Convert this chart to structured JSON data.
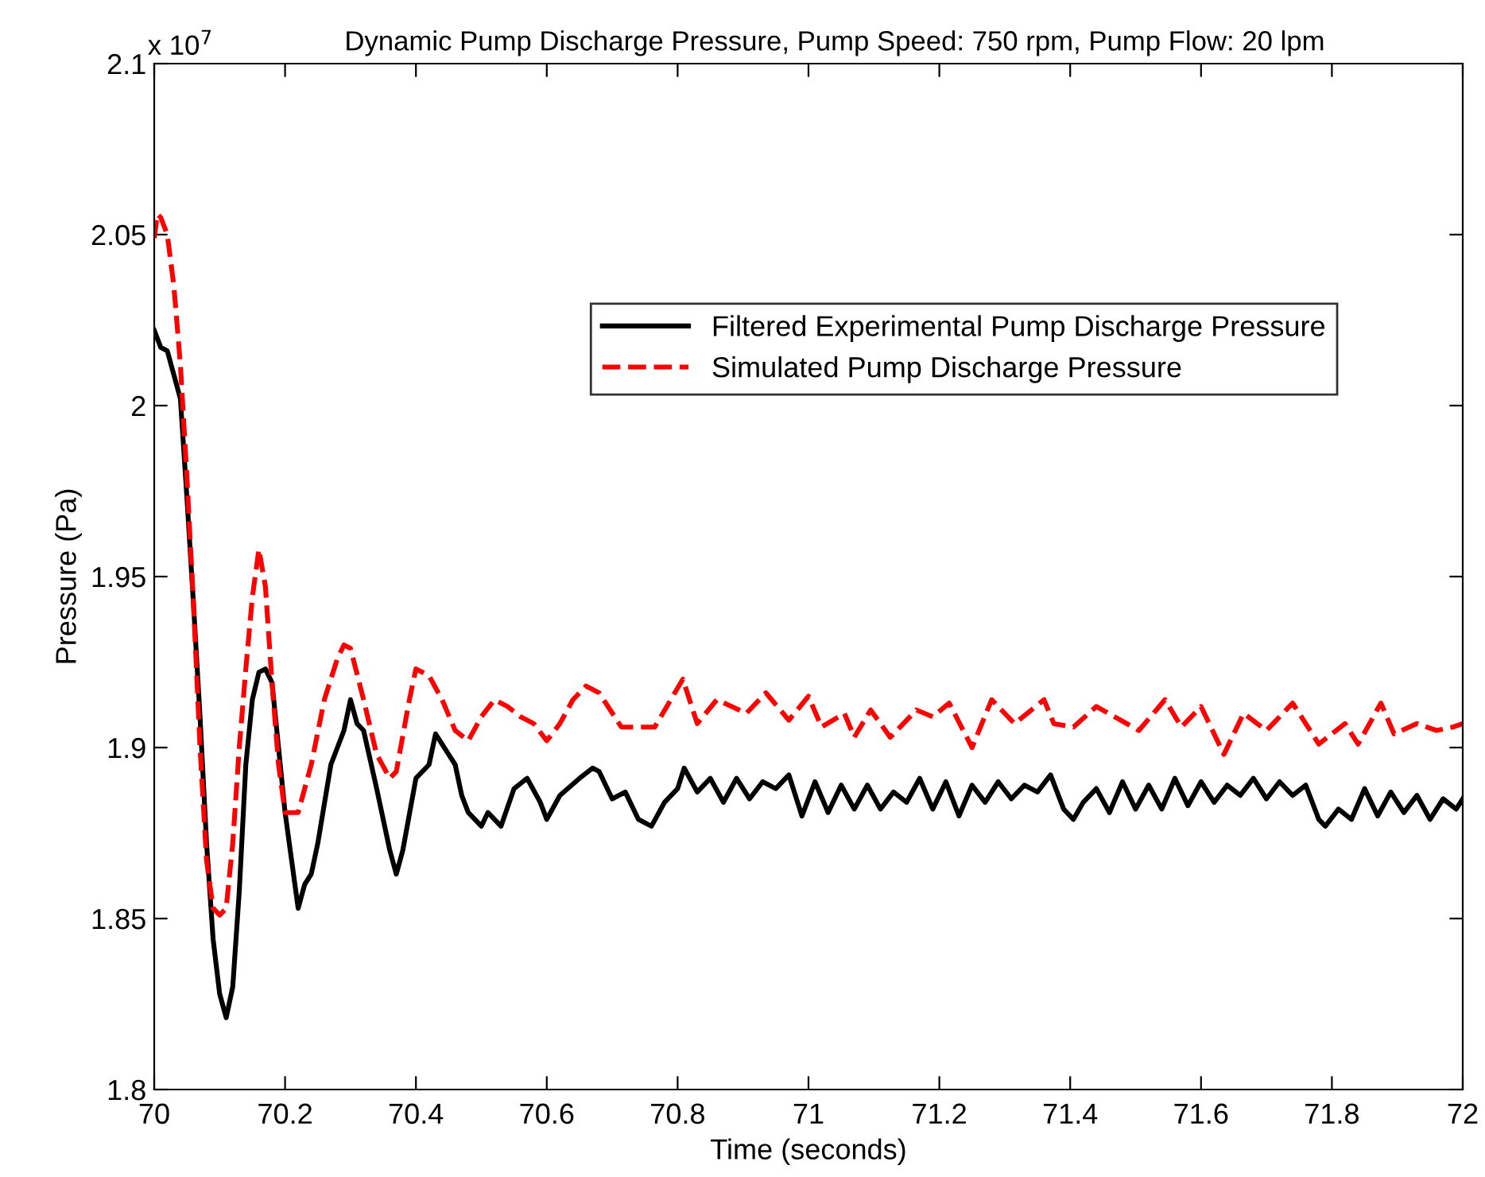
{
  "chart_data": {
    "type": "line",
    "title": "Dynamic Pump Discharge Pressure, Pump Speed: 750 rpm, Pump Flow: 20 lpm",
    "xlabel": "Time (seconds)",
    "ylabel": "Pressure (Pa)",
    "annotations": [
      "x 10$^{7}$"
    ],
    "xlim": [
      70,
      72
    ],
    "ylim": [
      1.8,
      2.1
    ],
    "xticks": [
      70,
      70.2,
      70.4,
      70.6,
      70.8,
      71,
      71.2,
      71.4,
      71.6,
      71.8,
      72
    ],
    "yticks": [
      1.8,
      1.85,
      1.9,
      1.95,
      2,
      2.05,
      2.1
    ],
    "grid": false,
    "legend": "upper right",
    "series": [
      {
        "name": "Filtered Experimental Pump Discharge Pressure",
        "color": "#000000",
        "line_style": "solid",
        "x": [
          70,
          70.01,
          70.02,
          70.03,
          70.04,
          70.05,
          70.06,
          70.07,
          70.08,
          70.09,
          70.1,
          70.11,
          70.12,
          70.13,
          70.14,
          70.15,
          70.16,
          70.17,
          70.18,
          70.19,
          70.2,
          70.22,
          70.23,
          70.24,
          70.25,
          70.27,
          70.29,
          70.3,
          70.31,
          70.32,
          70.34,
          70.36,
          70.37,
          70.38,
          70.4,
          70.42,
          70.43,
          70.45,
          70.46,
          70.47,
          70.48,
          70.5,
          70.51,
          70.53,
          70.55,
          70.57,
          70.59,
          70.6,
          70.62,
          70.65,
          70.67,
          70.68,
          70.7,
          70.72,
          70.74,
          70.76,
          70.78,
          70.8,
          70.81,
          70.83,
          70.85,
          70.87,
          70.89,
          70.91,
          70.93,
          70.95,
          70.97,
          70.99,
          71.01,
          71.03,
          71.05,
          71.07,
          71.09,
          71.11,
          71.13,
          71.15,
          71.17,
          71.19,
          71.21,
          71.23,
          71.25,
          71.27,
          71.29,
          71.31,
          71.33,
          71.35,
          71.37,
          71.39,
          71.405,
          71.42,
          71.44,
          71.46,
          71.48,
          71.5,
          71.52,
          71.54,
          71.56,
          71.58,
          71.6,
          71.62,
          71.64,
          71.66,
          71.68,
          71.7,
          71.72,
          71.74,
          71.76,
          71.78,
          71.79,
          71.81,
          71.83,
          71.85,
          71.87,
          71.89,
          71.91,
          71.93,
          71.95,
          71.97,
          71.99,
          72
        ],
        "values": [
          2.022,
          2.017,
          2.016,
          2.009,
          2.002,
          1.973,
          1.942,
          1.909,
          1.872,
          1.844,
          1.828,
          1.821,
          1.83,
          1.858,
          1.895,
          1.914,
          1.922,
          1.923,
          1.919,
          1.9,
          1.881,
          1.853,
          1.86,
          1.863,
          1.872,
          1.895,
          1.905,
          1.914,
          1.907,
          1.905,
          1.888,
          1.87,
          1.863,
          1.87,
          1.891,
          1.895,
          1.904,
          1.898,
          1.895,
          1.886,
          1.881,
          1.877,
          1.881,
          1.877,
          1.888,
          1.891,
          1.884,
          1.879,
          1.886,
          1.891,
          1.894,
          1.893,
          1.885,
          1.887,
          1.879,
          1.877,
          1.884,
          1.888,
          1.894,
          1.887,
          1.891,
          1.884,
          1.891,
          1.885,
          1.89,
          1.888,
          1.892,
          1.88,
          1.89,
          1.881,
          1.889,
          1.882,
          1.889,
          1.882,
          1.887,
          1.884,
          1.891,
          1.882,
          1.89,
          1.88,
          1.889,
          1.884,
          1.89,
          1.885,
          1.889,
          1.887,
          1.892,
          1.882,
          1.879,
          1.884,
          1.888,
          1.881,
          1.89,
          1.882,
          1.889,
          1.882,
          1.891,
          1.883,
          1.89,
          1.884,
          1.889,
          1.886,
          1.891,
          1.885,
          1.89,
          1.886,
          1.889,
          1.879,
          1.877,
          1.882,
          1.879,
          1.888,
          1.88,
          1.887,
          1.881,
          1.886,
          1.879,
          1.885,
          1.882,
          1.885
        ]
      },
      {
        "name": "Simulated Pump Discharge Pressure",
        "color": "#ff0000",
        "line_style": "dashed",
        "x": [
          70,
          70.005,
          70.01,
          70.02,
          70.03,
          70.04,
          70.05,
          70.06,
          70.07,
          70.08,
          70.09,
          70.1,
          70.11,
          70.12,
          70.13,
          70.14,
          70.15,
          70.16,
          70.17,
          70.18,
          70.19,
          70.2,
          70.22,
          70.24,
          70.26,
          70.28,
          70.29,
          70.3,
          70.32,
          70.34,
          70.36,
          70.37,
          70.39,
          70.4,
          70.42,
          70.44,
          70.46,
          70.48,
          70.5,
          70.52,
          70.54,
          70.56,
          70.58,
          70.6,
          70.62,
          70.64,
          70.66,
          70.68,
          70.714,
          70.765,
          70.808,
          70.83,
          70.86,
          70.905,
          70.935,
          70.97,
          71,
          71.02,
          71.055,
          71.07,
          71.095,
          71.125,
          71.165,
          71.19,
          71.215,
          71.25,
          71.28,
          71.315,
          71.36,
          71.375,
          71.405,
          71.44,
          71.505,
          71.545,
          71.57,
          71.6,
          71.635,
          71.665,
          71.7,
          71.74,
          71.78,
          71.82,
          71.84,
          71.875,
          71.895,
          71.93,
          71.96,
          71.985,
          72
        ],
        "values": [
          2.049,
          2.056,
          2.055,
          2.05,
          2.035,
          2.012,
          1.979,
          1.942,
          1.9,
          1.867,
          1.853,
          1.851,
          1.853,
          1.872,
          1.9,
          1.923,
          1.944,
          1.958,
          1.947,
          1.919,
          1.895,
          1.881,
          1.881,
          1.895,
          1.914,
          1.926,
          1.93,
          1.929,
          1.914,
          1.898,
          1.891,
          1.893,
          1.914,
          1.923,
          1.921,
          1.914,
          1.905,
          1.902,
          1.909,
          1.914,
          1.912,
          1.909,
          1.907,
          1.902,
          1.907,
          1.914,
          1.918,
          1.916,
          1.906,
          1.906,
          1.92,
          1.907,
          1.914,
          1.91,
          1.916,
          1.908,
          1.915,
          1.906,
          1.91,
          1.903,
          1.911,
          1.903,
          1.911,
          1.909,
          1.913,
          1.9,
          1.914,
          1.907,
          1.914,
          1.907,
          1.906,
          1.912,
          1.905,
          1.914,
          1.906,
          1.912,
          1.898,
          1.91,
          1.905,
          1.913,
          1.901,
          1.907,
          1.901,
          1.913,
          1.904,
          1.907,
          1.905,
          1.906,
          1.907
        ]
      }
    ]
  }
}
